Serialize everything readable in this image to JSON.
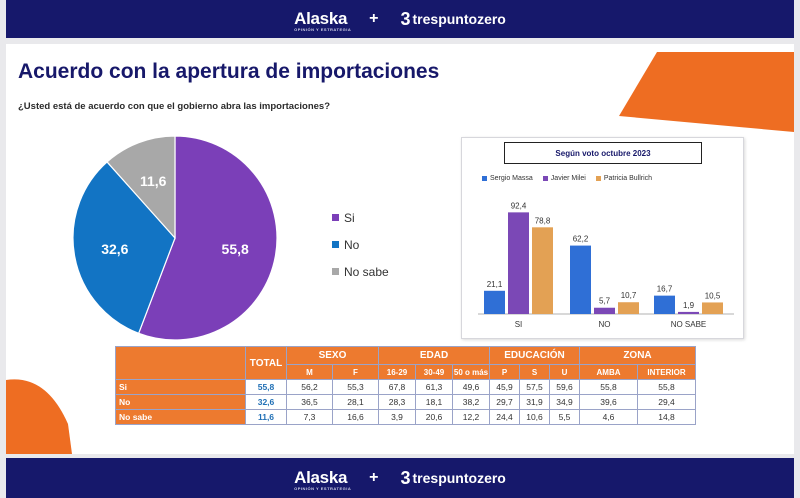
{
  "branding": {
    "left": "Alaska",
    "left_sub": "OPINIÓN Y ESTRATEGIA",
    "separator": "+",
    "right": "trespuntozero",
    "right_mark": "3"
  },
  "title": "Acuerdo con la apertura de importaciones",
  "subtitle": "¿Usted está de acuerdo con que el gobierno abra las importaciones?",
  "colors": {
    "brand_navy": "#16186b",
    "accent_orange": "#ed7a2f",
    "si": "#7b3fb8",
    "no": "#1274c4",
    "no_sabe": "#a8a8a8",
    "massa": "#2f6fd6",
    "milei": "#7b48b6",
    "bullrich": "#e3a154"
  },
  "chart_data": [
    {
      "type": "pie",
      "title": "",
      "slices": [
        {
          "label": "Si",
          "value": 55.8,
          "display": "55,8",
          "color": "#7b3fb8"
        },
        {
          "label": "No",
          "value": 32.6,
          "display": "32,6",
          "color": "#1274c4"
        },
        {
          "label": "No sabe",
          "value": 11.6,
          "display": "11,6",
          "color": "#a8a8a8"
        }
      ],
      "legend_position": "right"
    },
    {
      "type": "bar",
      "title": "Según voto octubre 2023",
      "categories": [
        "SI",
        "NO",
        "NO SABE"
      ],
      "series": [
        {
          "name": "Sergio Massa",
          "values": [
            21.1,
            62.2,
            16.7
          ],
          "labels": [
            "21,1",
            "62,2",
            "16,7"
          ],
          "color": "#2f6fd6"
        },
        {
          "name": "Javier Milei",
          "values": [
            92.4,
            5.7,
            1.9
          ],
          "labels": [
            "92,4",
            "5,7",
            "1,9"
          ],
          "color": "#7b48b6"
        },
        {
          "name": "Patricia Bullrich",
          "values": [
            78.8,
            10.7,
            10.5
          ],
          "labels": [
            "78,8",
            "10,7",
            "10,5"
          ],
          "color": "#e3a154"
        }
      ],
      "ylim": [
        0,
        100
      ],
      "legend_position": "top"
    },
    {
      "type": "table",
      "total_header": "TOTAL",
      "groups": [
        {
          "name": "SEXO",
          "cols": [
            "M",
            "F"
          ]
        },
        {
          "name": "EDAD",
          "cols": [
            "16-29",
            "30-49",
            "50 o más"
          ]
        },
        {
          "name": "EDUCACIÓN",
          "cols": [
            "P",
            "S",
            "U"
          ]
        },
        {
          "name": "ZONA",
          "cols": [
            "AMBA",
            "INTERIOR"
          ]
        }
      ],
      "rows": [
        {
          "label": "Si",
          "total": "55,8",
          "cells": [
            "56,2",
            "55,3",
            "67,8",
            "61,3",
            "49,6",
            "45,9",
            "57,5",
            "59,6",
            "55,8",
            "55,8"
          ]
        },
        {
          "label": "No",
          "total": "32,6",
          "cells": [
            "36,5",
            "28,1",
            "28,3",
            "18,1",
            "38,2",
            "29,7",
            "31,9",
            "34,9",
            "39,6",
            "29,4"
          ]
        },
        {
          "label": "No sabe",
          "total": "11,6",
          "cells": [
            "7,3",
            "16,6",
            "3,9",
            "20,6",
            "12,2",
            "24,4",
            "10,6",
            "5,5",
            "4,6",
            "14,8"
          ]
        }
      ]
    }
  ]
}
